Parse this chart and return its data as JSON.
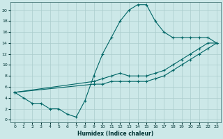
{
  "xlabel": "Humidex (Indice chaleur)",
  "background_color": "#cce8e8",
  "grid_color": "#aacccc",
  "line_color": "#006666",
  "xlim": [
    -0.5,
    23.5
  ],
  "ylim": [
    -0.5,
    21.5
  ],
  "xticks": [
    0,
    1,
    2,
    3,
    4,
    5,
    6,
    7,
    8,
    9,
    10,
    11,
    12,
    13,
    14,
    15,
    16,
    17,
    18,
    19,
    20,
    21,
    22,
    23
  ],
  "yticks": [
    0,
    2,
    4,
    6,
    8,
    10,
    12,
    14,
    16,
    18,
    20
  ],
  "line1_x": [
    0,
    1,
    2,
    3,
    4,
    5,
    6,
    7,
    8,
    9,
    10,
    11,
    12,
    13,
    14,
    15,
    16,
    17,
    18,
    19,
    20,
    21,
    22,
    23
  ],
  "line1_y": [
    5,
    4,
    3,
    3,
    2,
    2,
    1,
    0.5,
    3.5,
    8,
    12,
    15,
    18,
    20,
    21,
    21,
    18,
    16,
    15,
    15,
    15,
    15,
    15,
    14
  ],
  "line2_x": [
    0,
    9,
    10,
    11,
    12,
    13,
    14,
    15,
    16,
    17,
    18,
    19,
    20,
    21,
    22,
    23
  ],
  "line2_y": [
    5,
    7,
    7.5,
    8,
    8.5,
    8,
    8,
    8,
    8.5,
    9,
    10,
    11,
    12,
    13,
    14,
    14
  ],
  "line3_x": [
    0,
    9,
    10,
    11,
    12,
    13,
    14,
    15,
    16,
    17,
    18,
    19,
    20,
    21,
    22,
    23
  ],
  "line3_y": [
    5,
    6.5,
    6.5,
    7,
    7,
    7,
    7,
    7,
    7.5,
    8,
    9,
    10,
    11,
    12,
    13,
    14
  ]
}
